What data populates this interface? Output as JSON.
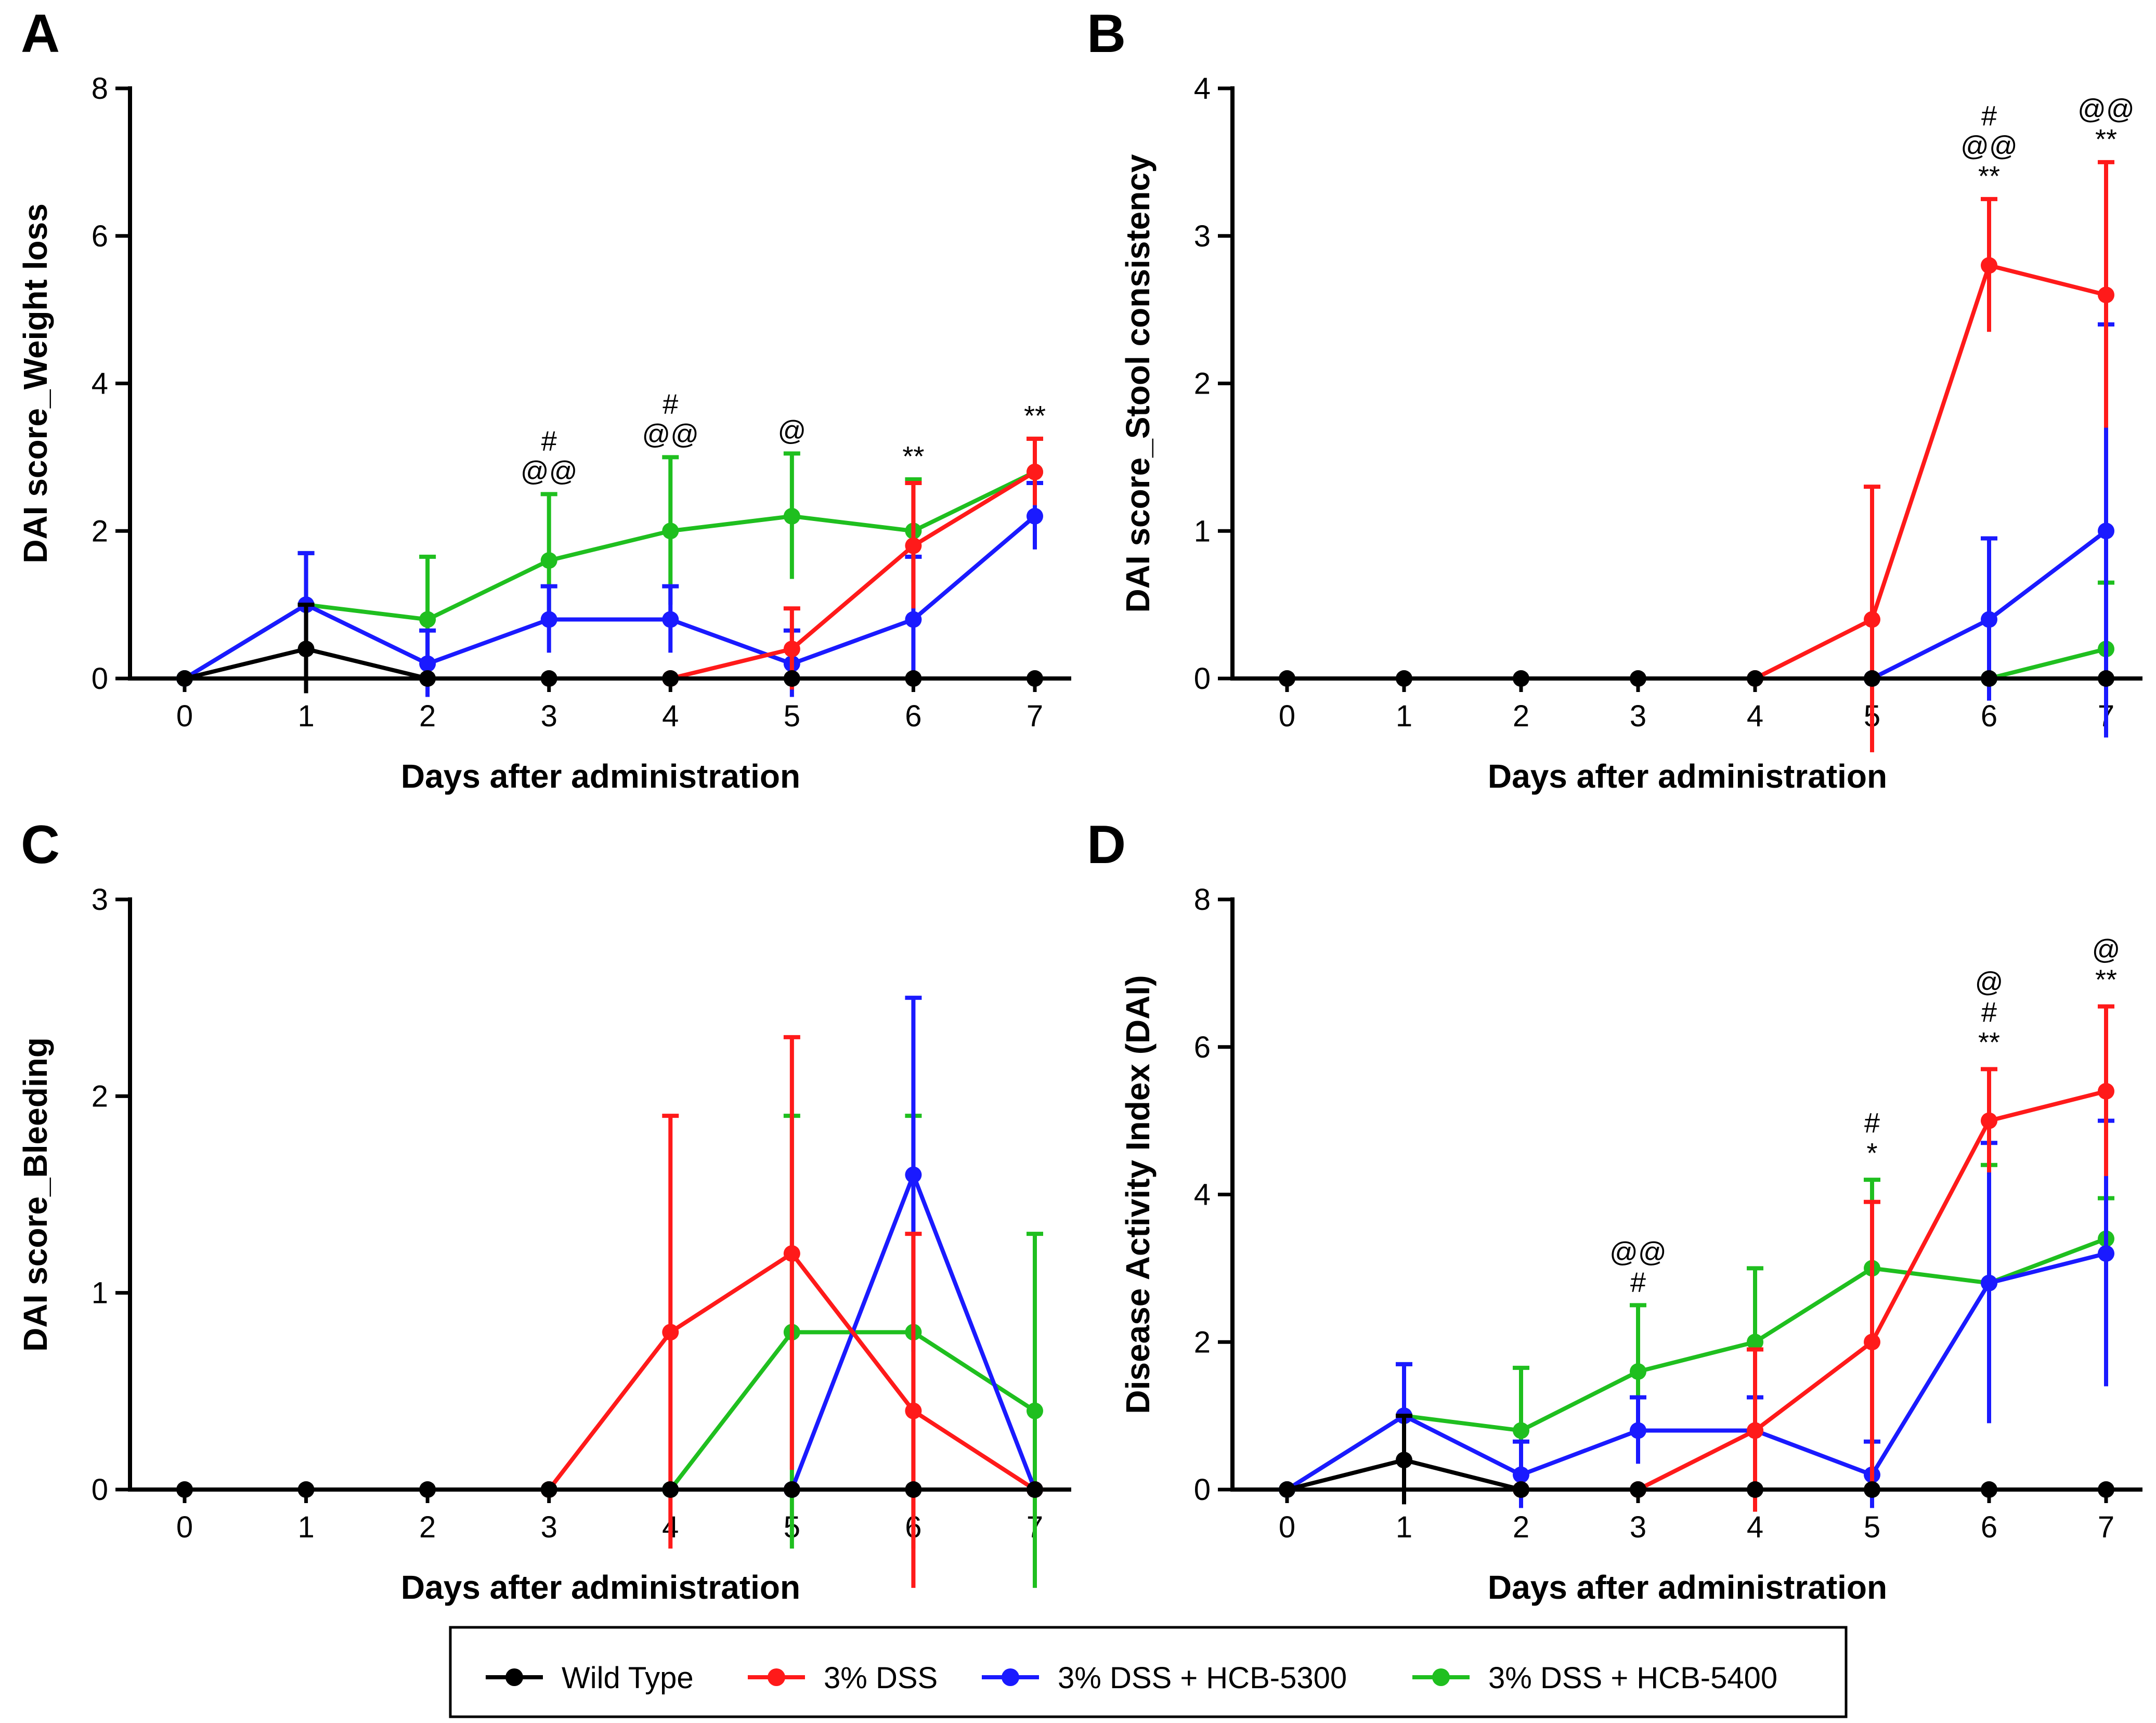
{
  "colors": {
    "wt": "#000000",
    "dss": "#ff1a1a",
    "h5300": "#1a1aff",
    "h5400": "#1fbf1f"
  },
  "legend": [
    {
      "key": "wt",
      "label": "Wild Type"
    },
    {
      "key": "dss",
      "label": "3% DSS"
    },
    {
      "key": "h5300",
      "label": "3% DSS + HCB-5300"
    },
    {
      "key": "h5400",
      "label": "3% DSS + HCB-5400"
    }
  ],
  "chart_data": [
    {
      "panel": "A",
      "type": "line",
      "xlabel": "Days after administration",
      "ylabel": "DAI score_Weight loss",
      "x": [
        0,
        1,
        2,
        3,
        4,
        5,
        6,
        7
      ],
      "xticks": [
        "0",
        "1",
        "2",
        "3",
        "4",
        "5",
        "6",
        "7"
      ],
      "ylim": [
        0,
        8
      ],
      "yticks": [
        "0",
        "2",
        "4",
        "6",
        "8"
      ],
      "ytickvals": [
        0,
        2,
        4,
        6,
        8
      ],
      "series": [
        {
          "key": "wt",
          "name": "Wild Type",
          "values": [
            0,
            0.4,
            0,
            0,
            0,
            0,
            0,
            0
          ],
          "err": [
            0,
            0.6,
            0,
            0,
            0,
            0,
            0,
            0
          ]
        },
        {
          "key": "dss",
          "name": "3% DSS",
          "values": [
            null,
            null,
            null,
            null,
            0,
            0.4,
            1.8,
            2.8
          ],
          "err": [
            0,
            0,
            0,
            0,
            0,
            0.55,
            0.85,
            0.45
          ]
        },
        {
          "key": "h5300",
          "name": "3% DSS + HCB-5300",
          "values": [
            0,
            1,
            0.2,
            0.8,
            0.8,
            0.2,
            0.8,
            2.2
          ],
          "err": [
            0,
            0.7,
            0.45,
            0.45,
            0.45,
            0.45,
            0.85,
            0.45
          ]
        },
        {
          "key": "h5400",
          "name": "3% DSS + HCB-5400",
          "values": [
            0,
            1,
            0.8,
            1.6,
            2,
            2.2,
            2,
            2.8
          ],
          "err": [
            0,
            0.7,
            0.85,
            0.9,
            1,
            0.85,
            0.7,
            0.45
          ]
        }
      ],
      "annotations": [
        {
          "x": 3,
          "y": 2.5,
          "lines": [
            "#",
            "@@"
          ]
        },
        {
          "x": 4,
          "y": 3.0,
          "lines": [
            "#",
            "@@"
          ]
        },
        {
          "x": 5,
          "y": 3.05,
          "lines": [
            "@"
          ]
        },
        {
          "x": 6,
          "y": 2.7,
          "lines": [
            "**"
          ]
        },
        {
          "x": 7,
          "y": 3.25,
          "lines": [
            "**"
          ]
        }
      ]
    },
    {
      "panel": "B",
      "type": "line",
      "xlabel": "Days after administration",
      "ylabel": "DAI score_Stool consistency",
      "x": [
        0,
        1,
        2,
        3,
        4,
        5,
        6,
        7
      ],
      "xticks": [
        "0",
        "1",
        "2",
        "3",
        "4",
        "5",
        "6",
        "7"
      ],
      "ylim": [
        0,
        4
      ],
      "yticks": [
        "0",
        "1",
        "2",
        "3",
        "4"
      ],
      "ytickvals": [
        0,
        1,
        2,
        3,
        4
      ],
      "series": [
        {
          "key": "wt",
          "name": "Wild Type",
          "values": [
            0,
            0,
            0,
            0,
            0,
            0,
            0,
            0
          ],
          "err": [
            0,
            0,
            0,
            0,
            0,
            0,
            0,
            0
          ]
        },
        {
          "key": "dss",
          "name": "3% DSS",
          "values": [
            null,
            null,
            null,
            null,
            0,
            0.4,
            2.8,
            2.6
          ],
          "err": [
            0,
            0,
            0,
            0,
            0,
            0.9,
            0.45,
            0.9
          ]
        },
        {
          "key": "h5300",
          "name": "3% DSS + HCB-5300",
          "values": [
            null,
            null,
            null,
            null,
            null,
            0,
            0.4,
            1
          ],
          "err": [
            0,
            0,
            0,
            0,
            0,
            0,
            0.55,
            1.4
          ]
        },
        {
          "key": "h5400",
          "name": "3% DSS + HCB-5400",
          "values": [
            null,
            null,
            null,
            null,
            null,
            null,
            0,
            0.2
          ],
          "err": [
            0,
            0,
            0,
            0,
            0,
            0,
            0,
            0.45
          ]
        }
      ],
      "annotations": [
        {
          "x": 6,
          "y": 3.25,
          "lines": [
            "#",
            "@@",
            "**"
          ]
        },
        {
          "x": 7,
          "y": 3.5,
          "lines": [
            "@@",
            "**"
          ]
        }
      ]
    },
    {
      "panel": "C",
      "type": "line",
      "xlabel": "Days after administration",
      "ylabel": "DAI score_Bleeding",
      "x": [
        0,
        1,
        2,
        3,
        4,
        5,
        6,
        7
      ],
      "xticks": [
        "0",
        "1",
        "2",
        "3",
        "4",
        "5",
        "6",
        "7"
      ],
      "ylim": [
        0,
        3
      ],
      "yticks": [
        "0",
        "1",
        "2",
        "3"
      ],
      "ytickvals": [
        0,
        1,
        2,
        3
      ],
      "series": [
        {
          "key": "wt",
          "name": "Wild Type",
          "values": [
            0,
            0,
            0,
            0,
            0,
            0,
            0,
            0
          ],
          "err": [
            0,
            0,
            0,
            0,
            0,
            0,
            0,
            0
          ]
        },
        {
          "key": "dss",
          "name": "3% DSS",
          "values": [
            null,
            null,
            null,
            0,
            0.8,
            1.2,
            0.4,
            0
          ],
          "err": [
            0,
            0,
            0,
            0,
            1.1,
            1.1,
            0.9,
            0
          ]
        },
        {
          "key": "h5300",
          "name": "3% DSS + HCB-5300",
          "values": [
            null,
            null,
            null,
            null,
            null,
            0,
            1.6,
            0
          ],
          "err": [
            0,
            0,
            0,
            0,
            0,
            0,
            0.9,
            0
          ]
        },
        {
          "key": "h5400",
          "name": "3% DSS + HCB-5400",
          "values": [
            null,
            null,
            null,
            null,
            0,
            0.8,
            0.8,
            0.4
          ],
          "err": [
            0,
            0,
            0,
            0,
            0,
            1.1,
            1.1,
            0.9
          ]
        }
      ],
      "annotations": []
    },
    {
      "panel": "D",
      "type": "line",
      "xlabel": "Days after administration",
      "ylabel": "Disease Activity Index (DAI)",
      "x": [
        0,
        1,
        2,
        3,
        4,
        5,
        6,
        7
      ],
      "xticks": [
        "0",
        "1",
        "2",
        "3",
        "4",
        "5",
        "6",
        "7"
      ],
      "ylim": [
        0,
        8
      ],
      "yticks": [
        "0",
        "2",
        "4",
        "6",
        "8"
      ],
      "ytickvals": [
        0,
        2,
        4,
        6,
        8
      ],
      "series": [
        {
          "key": "wt",
          "name": "Wild Type",
          "values": [
            0,
            0.4,
            0,
            0,
            0,
            0,
            0,
            0
          ],
          "err": [
            0,
            0.6,
            0,
            0,
            0,
            0,
            0,
            0
          ]
        },
        {
          "key": "dss",
          "name": "3% DSS",
          "values": [
            null,
            null,
            0,
            0,
            0.8,
            2,
            5,
            5.4
          ],
          "err": [
            0,
            0,
            0,
            0,
            1.1,
            1.9,
            0.7,
            1.15
          ]
        },
        {
          "key": "h5300",
          "name": "3% DSS + HCB-5300",
          "values": [
            0,
            1,
            0.2,
            0.8,
            0.8,
            0.2,
            2.8,
            3.2
          ],
          "err": [
            0,
            0.7,
            0.45,
            0.45,
            0.45,
            0.45,
            1.9,
            1.8
          ]
        },
        {
          "key": "h5400",
          "name": "3% DSS + HCB-5400",
          "values": [
            0,
            1,
            0.8,
            1.6,
            2,
            3,
            2.8,
            3.4
          ],
          "err": [
            0,
            0.7,
            0.85,
            0.9,
            1,
            1.2,
            1.6,
            0.55
          ]
        }
      ],
      "annotations": [
        {
          "x": 3,
          "y": 2.5,
          "lines": [
            "@@",
            "#"
          ]
        },
        {
          "x": 5,
          "y": 4.25,
          "lines": [
            "#",
            "*"
          ]
        },
        {
          "x": 6,
          "y": 5.75,
          "lines": [
            "@",
            "#",
            "**"
          ]
        },
        {
          "x": 7,
          "y": 6.6,
          "lines": [
            "@",
            "**"
          ]
        }
      ]
    }
  ]
}
